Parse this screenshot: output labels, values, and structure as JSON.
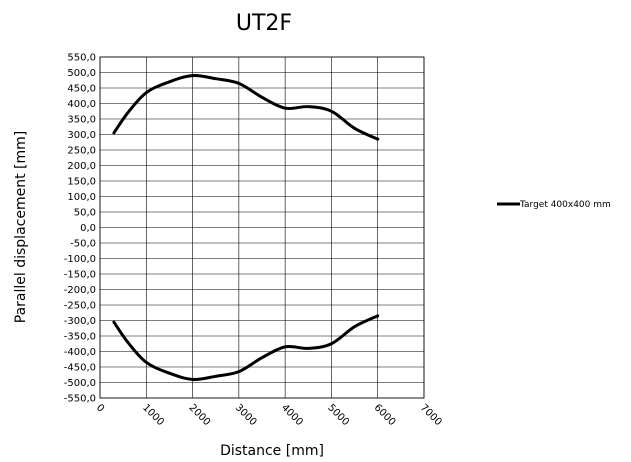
{
  "chart_data": {
    "type": "line",
    "title": "UT2F",
    "xlabel": "Distance  [mm]",
    "ylabel": "Parallel displacement [mm]",
    "xlim": [
      0,
      7000
    ],
    "ylim": [
      -550,
      550
    ],
    "x_ticks": [
      "0",
      "1000",
      "2000",
      "3000",
      "4000",
      "5000",
      "6000",
      "7000"
    ],
    "y_ticks": [
      "550,0",
      "500,0",
      "450,0",
      "400,0",
      "350,0",
      "300,0",
      "250,0",
      "200,0",
      "150,0",
      "100,0",
      "50,0",
      "0,0",
      "-50,0",
      "-100,0",
      "-150,0",
      "-200,0",
      "-250,0",
      "-300,0",
      "-350,0",
      "-400,0",
      "-450,0",
      "-500,0",
      "-550,0"
    ],
    "grid": "on",
    "legend_position": "right",
    "series": [
      {
        "name": "Target 400x400 mm",
        "color": "#000000",
        "x": [
          300,
          600,
          1000,
          1500,
          2000,
          2500,
          3000,
          3500,
          4000,
          4500,
          5000,
          5500,
          6000
        ],
        "y": [
          305,
          370,
          435,
          470,
          490,
          480,
          465,
          420,
          385,
          390,
          375,
          320,
          285
        ]
      },
      {
        "name": "",
        "color": "#000000",
        "x": [
          300,
          600,
          1000,
          1500,
          2000,
          2500,
          3000,
          3500,
          4000,
          4500,
          5000,
          5500,
          6000
        ],
        "y": [
          -305,
          -370,
          -435,
          -470,
          -490,
          -480,
          -465,
          -420,
          -385,
          -390,
          -375,
          -320,
          -285
        ]
      }
    ]
  }
}
